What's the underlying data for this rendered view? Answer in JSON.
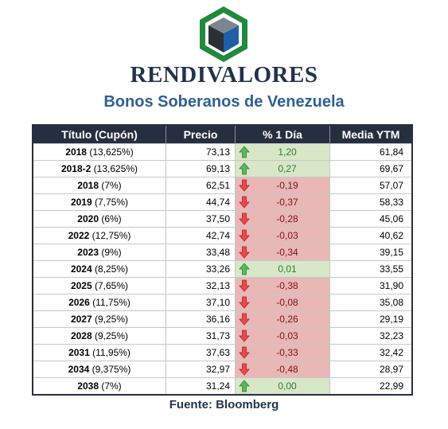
{
  "brand": "RENDIVALORES",
  "subtitle": "Bonos Soberanos de Venezuela",
  "columns": [
    "Título (Cupón)",
    "Precio",
    "% 1 Día",
    "Media YTM"
  ],
  "rows": [
    {
      "year": "2018",
      "coupon": "(13,625%)",
      "price": "73,13",
      "change": "1,20",
      "dir": "up",
      "ytm": "61,84"
    },
    {
      "year": "2018-2",
      "coupon": "(13,625%)",
      "price": "69,13",
      "change": "0,27",
      "dir": "up",
      "ytm": "69,67"
    },
    {
      "year": "2018",
      "coupon": "(7%)",
      "price": "62,51",
      "change": "-0,19",
      "dir": "down",
      "ytm": "57,07"
    },
    {
      "year": "2019",
      "coupon": "(7,75%)",
      "price": "44,74",
      "change": "-0,37",
      "dir": "down",
      "ytm": "58,33"
    },
    {
      "year": "2020",
      "coupon": "(6%)",
      "price": "37,50",
      "change": "-0,28",
      "dir": "down",
      "ytm": "45,06"
    },
    {
      "year": "2022",
      "coupon": "(12,75%)",
      "price": "42,74",
      "change": "-0,03",
      "dir": "down",
      "ytm": "40,62"
    },
    {
      "year": "2023",
      "coupon": "(9%)",
      "price": "33,48",
      "change": "-0,34",
      "dir": "down",
      "ytm": "39,15"
    },
    {
      "year": "2024",
      "coupon": "(8,25%)",
      "price": "33,26",
      "change": "0,01",
      "dir": "up",
      "ytm": "33,55"
    },
    {
      "year": "2025",
      "coupon": "(7,65%)",
      "price": "32,13",
      "change": "-0,38",
      "dir": "down",
      "ytm": "31,90"
    },
    {
      "year": "2026",
      "coupon": "(11,75%)",
      "price": "37,10",
      "change": "-0,08",
      "dir": "down",
      "ytm": "35,08"
    },
    {
      "year": "2027",
      "coupon": "(9,25%)",
      "price": "36,16",
      "change": "-0,26",
      "dir": "down",
      "ytm": "29,19"
    },
    {
      "year": "2028",
      "coupon": "(9,25%)",
      "price": "31,73",
      "change": "-0,03",
      "dir": "down",
      "ytm": "32,23"
    },
    {
      "year": "2031",
      "coupon": "(11,95%)",
      "price": "37,63",
      "change": "-0,33",
      "dir": "down",
      "ytm": "32,42"
    },
    {
      "year": "2034",
      "coupon": "(9,375%)",
      "price": "32,97",
      "change": "-0,48",
      "dir": "down",
      "ytm": "28,97"
    },
    {
      "year": "2038",
      "coupon": "(7%)",
      "price": "31,24",
      "change": "0,00",
      "dir": "up",
      "ytm": "22,99"
    }
  ],
  "icons": {
    "up": "arrow-up-icon",
    "down": "arrow-down-icon",
    "logo": "hexagon-cube-logo"
  },
  "colors": {
    "header_bg": "#262f40",
    "up_bg": "#d7e7c7",
    "down_bg": "#e9b7b6",
    "up_arrow": "#5cb85c",
    "down_arrow": "#e64c4c",
    "brand": "#23324b",
    "subtitle": "#2e5f96",
    "logo_green": "#1f8a3c",
    "logo_blue": "#1f5fa8"
  },
  "source": "Fuente: Bloomberg"
}
